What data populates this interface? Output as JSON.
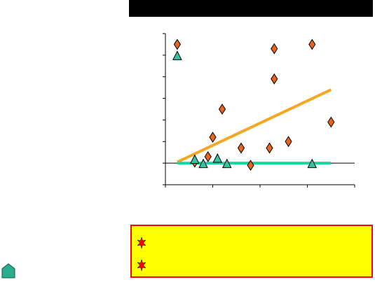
{
  "slide": {
    "title": "",
    "colors": {
      "title_bar": "#000000",
      "callout_fill": "#ffff00",
      "callout_border": "#ff0000",
      "bullet": "#ff0000",
      "home_button": "#2eab8c"
    },
    "callout": {
      "items": [
        {
          "text": "",
          "bullet_icon": "starburst-bullet-icon"
        },
        {
          "text": "",
          "bullet_icon": "starburst-bullet-icon"
        }
      ]
    },
    "home_button_icon": "home-icon"
  },
  "chart_data": {
    "type": "scatter",
    "title": "",
    "xlabel": "",
    "ylabel": "",
    "xlim": [
      0,
      4
    ],
    "ylim": [
      -1,
      6
    ],
    "grid": false,
    "series": [
      {
        "marker": "diamond",
        "color": "#e8641e",
        "points": [
          [
            0.25,
            5.5
          ],
          [
            0.62,
            0.05
          ],
          [
            0.9,
            0.3
          ],
          [
            1.0,
            1.2
          ],
          [
            1.2,
            2.5
          ],
          [
            1.6,
            0.7
          ],
          [
            1.8,
            -0.1
          ],
          [
            2.2,
            0.7
          ],
          [
            2.3,
            5.3
          ],
          [
            2.3,
            3.9
          ],
          [
            2.6,
            1.0
          ],
          [
            3.1,
            5.5
          ],
          [
            3.5,
            1.9
          ]
        ],
        "trend": {
          "color": "#f5a623",
          "from": [
            0.25,
            0.05
          ],
          "to": [
            3.5,
            3.4
          ]
        }
      },
      {
        "marker": "triangle",
        "color": "#36c4a0",
        "points": [
          [
            0.25,
            4.95
          ],
          [
            0.62,
            0.15
          ],
          [
            0.8,
            -0.05
          ],
          [
            1.1,
            0.2
          ],
          [
            1.3,
            -0.05
          ],
          [
            3.1,
            -0.05
          ]
        ],
        "trend": {
          "color": "#18d6a0",
          "from": [
            0.25,
            0.0
          ],
          "to": [
            3.5,
            0.0
          ]
        }
      }
    ]
  }
}
